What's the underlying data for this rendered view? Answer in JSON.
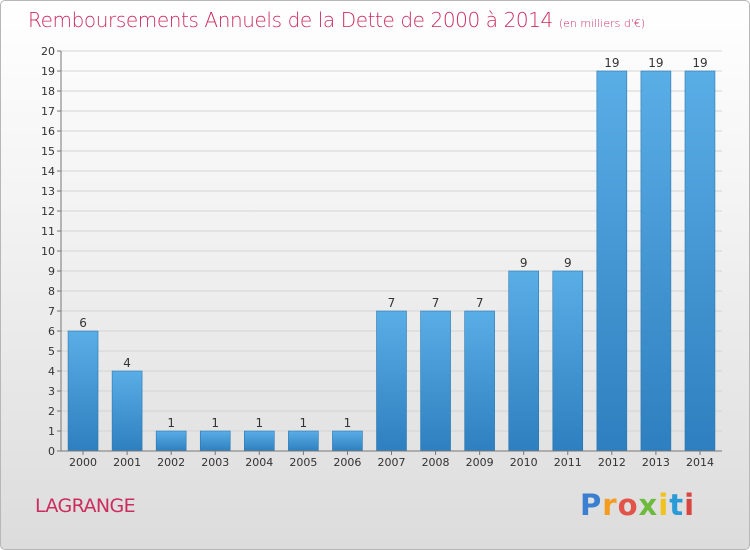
{
  "header": {
    "title": "Remboursements Annuels de la Dette de 2000 à 2014",
    "unit": "(en milliers d'€)"
  },
  "footer": {
    "commune": "LAGRANGE",
    "logo_letters": [
      "P",
      "r",
      "o",
      "x",
      "i",
      "t",
      "i"
    ]
  },
  "colors": {
    "title": "#cc2c5f",
    "bar_light": "#5aaee6",
    "bar_dark": "#2e7fbf",
    "grid": "#d4d4d4"
  },
  "chart_data": {
    "type": "bar",
    "title": "Remboursements Annuels de la Dette de 2000 à 2014",
    "subtitle": "(en milliers d'€)",
    "xlabel": "",
    "ylabel": "",
    "categories": [
      "2000",
      "2001",
      "2002",
      "2003",
      "2004",
      "2005",
      "2006",
      "2007",
      "2008",
      "2009",
      "2010",
      "2011",
      "2012",
      "2013",
      "2014"
    ],
    "values": [
      6,
      4,
      1,
      1,
      1,
      1,
      1,
      7,
      7,
      7,
      9,
      9,
      19,
      19,
      19
    ],
    "data_labels": [
      "6",
      "4",
      "1",
      "1",
      "1",
      "1",
      "1",
      "7",
      "7",
      "7",
      "9",
      "9",
      "19",
      "19",
      "19"
    ],
    "ylim": [
      0,
      20
    ],
    "yticks": [
      "0",
      "1",
      "2",
      "3",
      "4",
      "5",
      "6",
      "7",
      "8",
      "9",
      "10",
      "11",
      "12",
      "13",
      "14",
      "15",
      "16",
      "17",
      "18",
      "19",
      "20"
    ],
    "grid": true,
    "legend": "none"
  }
}
